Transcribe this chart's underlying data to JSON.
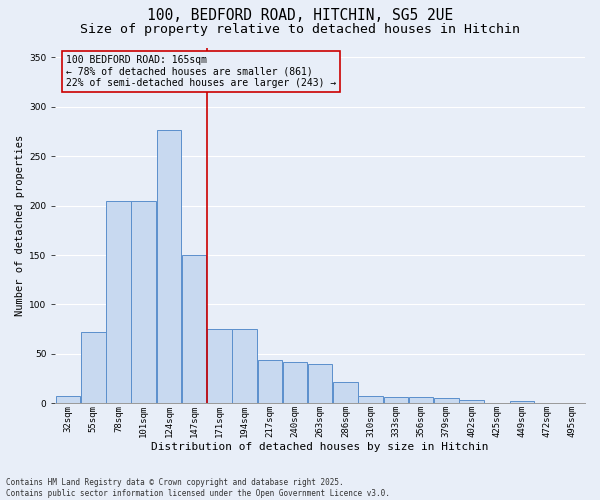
{
  "title_line1": "100, BEDFORD ROAD, HITCHIN, SG5 2UE",
  "title_line2": "Size of property relative to detached houses in Hitchin",
  "xlabel": "Distribution of detached houses by size in Hitchin",
  "ylabel": "Number of detached properties",
  "bins": [
    "32sqm",
    "55sqm",
    "78sqm",
    "101sqm",
    "124sqm",
    "147sqm",
    "171sqm",
    "194sqm",
    "217sqm",
    "240sqm",
    "263sqm",
    "286sqm",
    "310sqm",
    "333sqm",
    "356sqm",
    "379sqm",
    "402sqm",
    "425sqm",
    "449sqm",
    "472sqm",
    "495sqm"
  ],
  "values": [
    7,
    72,
    205,
    205,
    277,
    150,
    75,
    75,
    44,
    42,
    40,
    22,
    7,
    6,
    6,
    5,
    3,
    0,
    2,
    0,
    0
  ],
  "bar_color": "#c8d9f0",
  "bar_edge_color": "#5b8fcc",
  "ref_line_color": "#cc0000",
  "ref_line_x": 5.5,
  "annotation_box_text": "100 BEDFORD ROAD: 165sqm\n← 78% of detached houses are smaller (861)\n22% of semi-detached houses are larger (243) →",
  "annotation_box_color": "#cc0000",
  "ylim": [
    0,
    360
  ],
  "yticks": [
    0,
    50,
    100,
    150,
    200,
    250,
    300,
    350
  ],
  "bg_color": "#e8eef8",
  "grid_color": "#ffffff",
  "footer_text": "Contains HM Land Registry data © Crown copyright and database right 2025.\nContains public sector information licensed under the Open Government Licence v3.0.",
  "title_fontsize": 10.5,
  "subtitle_fontsize": 9.5,
  "ylabel_fontsize": 7.5,
  "xlabel_fontsize": 8,
  "tick_fontsize": 6.5,
  "annot_fontsize": 7,
  "footer_fontsize": 5.5
}
